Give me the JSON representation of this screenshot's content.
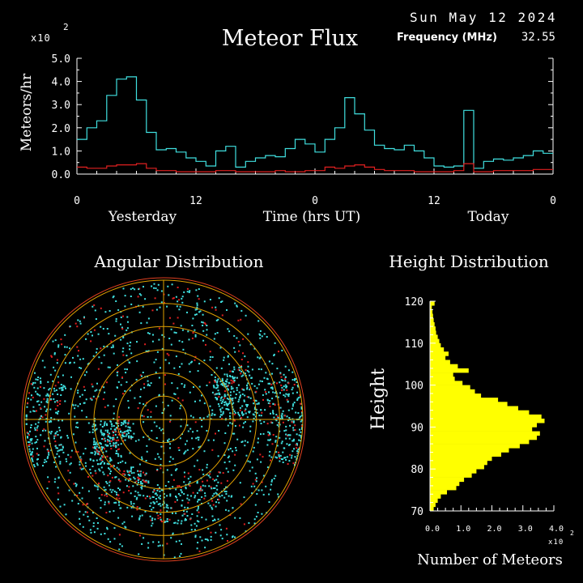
{
  "header": {
    "date": "Sun May 12 2024",
    "title": "Meteor Flux",
    "frequency_label": "Frequency (MHz)",
    "frequency_value": "32.55",
    "scale_label": "x10",
    "scale_exp": "2"
  },
  "flux_chart": {
    "type": "line",
    "ylabel": "Meteors/hr",
    "xlabel": "Time (hrs UT)",
    "yesterday_label": "Yesterday",
    "today_label": "Today",
    "ylim": [
      0,
      5
    ],
    "y_ticks": [
      "0.0",
      "1.0",
      "2.0",
      "3.0",
      "4.0",
      "5.0"
    ],
    "x_ticks": [
      "0",
      "12",
      "0",
      "12",
      "0"
    ],
    "x_tick_hours": [
      0,
      12,
      24,
      36,
      48
    ],
    "series": [
      {
        "color": "#40e0e0",
        "x": [
          0,
          1,
          2,
          3,
          4,
          5,
          6,
          7,
          8,
          9,
          10,
          11,
          12,
          13,
          14,
          15,
          16,
          17,
          18,
          19,
          20,
          21,
          22,
          23,
          24,
          25,
          26,
          27,
          28,
          29,
          30,
          31,
          32,
          33,
          34,
          35,
          36,
          37,
          38,
          39,
          40,
          41,
          42,
          43,
          44,
          45,
          46,
          47
        ],
        "values": [
          1.5,
          2.0,
          2.3,
          3.4,
          4.1,
          4.2,
          3.2,
          1.8,
          1.05,
          1.1,
          0.95,
          0.7,
          0.55,
          0.35,
          1.0,
          1.2,
          0.3,
          0.55,
          0.7,
          0.8,
          0.75,
          1.1,
          1.5,
          1.3,
          0.95,
          1.5,
          2.0,
          3.3,
          2.6,
          1.9,
          1.25,
          1.1,
          1.05,
          1.25,
          1.0,
          0.7,
          0.35,
          0.3,
          0.35,
          2.75,
          0.25,
          0.55,
          0.65,
          0.6,
          0.7,
          0.8,
          1.0,
          0.9
        ]
      },
      {
        "color": "#e02020",
        "x": [
          0,
          1,
          2,
          3,
          4,
          5,
          6,
          7,
          8,
          9,
          10,
          11,
          12,
          13,
          14,
          15,
          16,
          17,
          18,
          19,
          20,
          21,
          22,
          23,
          24,
          25,
          26,
          27,
          28,
          29,
          30,
          31,
          32,
          33,
          34,
          35,
          36,
          37,
          38,
          39,
          40,
          41,
          42,
          43,
          44,
          45,
          46,
          47
        ],
        "values": [
          0.3,
          0.25,
          0.25,
          0.35,
          0.4,
          0.4,
          0.45,
          0.25,
          0.15,
          0.15,
          0.1,
          0.1,
          0.1,
          0.1,
          0.15,
          0.15,
          0.1,
          0.1,
          0.1,
          0.1,
          0.15,
          0.1,
          0.1,
          0.15,
          0.15,
          0.3,
          0.25,
          0.35,
          0.4,
          0.3,
          0.2,
          0.15,
          0.15,
          0.15,
          0.1,
          0.1,
          0.1,
          0.1,
          0.15,
          0.45,
          0.1,
          0.1,
          0.15,
          0.15,
          0.15,
          0.15,
          0.2,
          0.2
        ]
      }
    ]
  },
  "angular_chart": {
    "type": "scatter",
    "title": "Angular Distribution",
    "ring_count": 6
  },
  "height_chart": {
    "type": "bar",
    "title": "Height Distribution",
    "ylabel": "Height",
    "xlabel": "Number of Meteors",
    "scale_label": "x10",
    "scale_exp": "2",
    "ylim": [
      70,
      120
    ],
    "xlim": [
      0,
      4
    ],
    "y_ticks": [
      "70",
      "80",
      "90",
      "100",
      "110",
      "120"
    ],
    "x_ticks": [
      "0.0",
      "1.0",
      "2.0",
      "3.0",
      "4.0"
    ],
    "bar_color": "#ffff00",
    "heights": [
      70,
      71,
      72,
      73,
      74,
      75,
      76,
      77,
      78,
      79,
      80,
      81,
      82,
      83,
      84,
      85,
      86,
      87,
      88,
      89,
      90,
      91,
      92,
      93,
      94,
      95,
      96,
      97,
      98,
      99,
      100,
      101,
      102,
      103,
      104,
      105,
      106,
      107,
      108,
      109,
      110,
      111,
      112,
      113,
      114,
      115,
      116,
      117,
      118,
      119
    ],
    "values": [
      0.12,
      0.18,
      0.25,
      0.35,
      0.55,
      0.85,
      0.95,
      1.1,
      1.35,
      1.5,
      1.75,
      1.85,
      2.0,
      2.3,
      2.55,
      2.9,
      3.2,
      3.45,
      3.55,
      3.3,
      3.45,
      3.7,
      3.6,
      3.2,
      2.85,
      2.5,
      2.2,
      1.65,
      1.45,
      1.3,
      1.05,
      0.8,
      0.75,
      1.25,
      0.9,
      0.65,
      0.5,
      0.6,
      0.45,
      0.35,
      0.3,
      0.25,
      0.2,
      0.18,
      0.15,
      0.12,
      0.1,
      0.08,
      0.06,
      0.15
    ]
  }
}
